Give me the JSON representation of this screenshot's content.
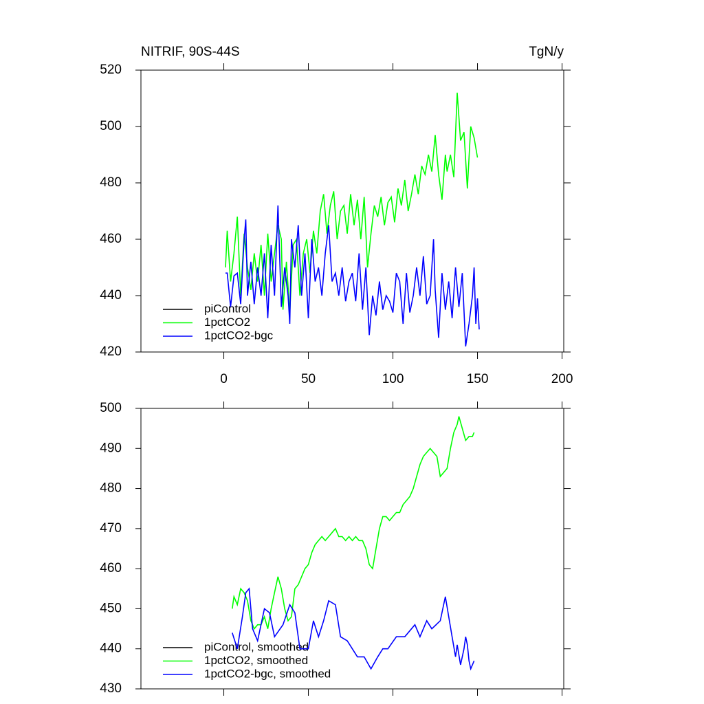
{
  "chart_data": [
    {
      "type": "line",
      "title": "NITRIF, 90S-44S",
      "units": "TgN/y",
      "xlim": [
        -49,
        201
      ],
      "ylim": [
        420,
        520
      ],
      "xticks": [
        0,
        50,
        100,
        150,
        200
      ],
      "yticks": [
        420,
        440,
        460,
        480,
        500,
        520
      ],
      "xtick_labels": true,
      "series": [
        {
          "name": "piControl",
          "color": "#000000",
          "x": [],
          "values": []
        },
        {
          "name": "1pctCO2",
          "color": "#00ff00",
          "x": [
            1,
            2,
            4,
            6,
            8,
            10,
            12,
            14,
            16,
            18,
            20,
            22,
            24,
            26,
            28,
            30,
            32,
            34,
            35,
            37,
            39,
            41,
            43,
            45,
            47,
            49,
            51,
            53,
            55,
            57,
            59,
            61,
            63,
            65,
            67,
            69,
            71,
            73,
            75,
            77,
            79,
            81,
            83,
            85,
            87,
            89,
            91,
            93,
            95,
            97,
            99,
            101,
            103,
            105,
            107,
            109,
            111,
            113,
            115,
            117,
            119,
            121,
            123,
            125,
            127,
            129,
            131,
            132,
            134,
            136,
            138,
            140,
            142,
            144,
            146,
            148,
            150
          ],
          "values": [
            450,
            463,
            445,
            455,
            468,
            440,
            462,
            450,
            442,
            455,
            445,
            458,
            440,
            462,
            445,
            455,
            465,
            460,
            435,
            452,
            434,
            458,
            460,
            440,
            455,
            460,
            448,
            463,
            455,
            470,
            476,
            462,
            472,
            477,
            460,
            470,
            472,
            462,
            476,
            465,
            474,
            460,
            475,
            450,
            462,
            472,
            468,
            475,
            465,
            473,
            475,
            466,
            478,
            472,
            481,
            470,
            476,
            483,
            476,
            486,
            483,
            490,
            484,
            497,
            483,
            474,
            490,
            484,
            490,
            482,
            512,
            495,
            498,
            478,
            500,
            496,
            489
          ]
        },
        {
          "name": "1pctCO2-bgc",
          "color": "#0000ff",
          "x": [
            1,
            2,
            4,
            6,
            8,
            10,
            12,
            13,
            14,
            16,
            18,
            20,
            22,
            24,
            26,
            28,
            30,
            32,
            34,
            36,
            38,
            39,
            40,
            42,
            44,
            46,
            48,
            50,
            52,
            54,
            56,
            58,
            60,
            62,
            64,
            66,
            68,
            70,
            72,
            74,
            76,
            78,
            80,
            82,
            84,
            86,
            88,
            90,
            92,
            94,
            96,
            98,
            100,
            102,
            104,
            106,
            108,
            110,
            112,
            114,
            116,
            118,
            120,
            122,
            124,
            125,
            127,
            129,
            131,
            133,
            135,
            137,
            139,
            141,
            143,
            145,
            147,
            148,
            149,
            150,
            151
          ],
          "values": [
            448,
            448,
            436,
            447,
            448,
            437,
            460,
            467,
            440,
            452,
            437,
            450,
            440,
            455,
            432,
            458,
            440,
            472,
            436,
            450,
            440,
            430,
            460,
            450,
            465,
            440,
            455,
            432,
            460,
            445,
            450,
            440,
            455,
            465,
            445,
            448,
            440,
            450,
            438,
            445,
            448,
            438,
            455,
            435,
            450,
            426,
            440,
            433,
            445,
            435,
            440,
            438,
            434,
            448,
            445,
            430,
            448,
            434,
            440,
            450,
            440,
            454,
            437,
            440,
            460,
            442,
            425,
            448,
            435,
            445,
            432,
            450,
            436,
            448,
            422,
            430,
            440,
            450,
            430,
            439,
            428
          ]
        }
      ]
    },
    {
      "type": "line",
      "xlim": [
        -49,
        201
      ],
      "ylim": [
        430,
        500
      ],
      "xticks": [
        0,
        50,
        100,
        150,
        200
      ],
      "yticks": [
        430,
        440,
        450,
        460,
        470,
        480,
        490,
        500
      ],
      "xtick_labels": false,
      "series": [
        {
          "name": "piControl, smoothed",
          "color": "#000000",
          "x": [],
          "values": []
        },
        {
          "name": "1pctCO2, smoothed",
          "color": "#00ff00",
          "x": [
            5,
            6,
            8,
            10,
            12,
            14,
            16,
            18,
            20,
            22,
            24,
            26,
            28,
            30,
            32,
            34,
            36,
            38,
            40,
            42,
            44,
            46,
            48,
            50,
            52,
            54,
            56,
            58,
            60,
            62,
            64,
            66,
            68,
            70,
            72,
            74,
            76,
            78,
            80,
            82,
            84,
            86,
            88,
            90,
            92,
            94,
            96,
            98,
            100,
            102,
            104,
            106,
            108,
            110,
            112,
            114,
            116,
            118,
            120,
            122,
            124,
            126,
            128,
            130,
            132,
            134,
            136,
            138,
            139,
            141,
            143,
            145,
            147,
            148
          ],
          "values": [
            450,
            453,
            451,
            455,
            454,
            452,
            447,
            445,
            446,
            446,
            448,
            445,
            450,
            454,
            458,
            455,
            450,
            447,
            448,
            455,
            456,
            458,
            460,
            461,
            464,
            466,
            467,
            468,
            467,
            468,
            469,
            470,
            468,
            468,
            467,
            468,
            467,
            468,
            467,
            467,
            465,
            461,
            460,
            465,
            470,
            473,
            473,
            472,
            473,
            474,
            474,
            476,
            477,
            478,
            480,
            483,
            486,
            488,
            489,
            490,
            489,
            488,
            483,
            484,
            485,
            490,
            494,
            496,
            498,
            495,
            492,
            493,
            493,
            494
          ]
        },
        {
          "name": "1pctCO2-bgc, smoothed",
          "color": "#0000ff",
          "x": [
            5,
            8,
            11,
            13,
            15,
            17,
            20,
            24,
            27,
            30,
            35,
            39,
            42,
            45,
            50,
            53,
            56,
            59,
            62,
            66,
            69,
            73,
            79,
            83,
            87,
            91,
            94,
            97,
            102,
            107,
            113,
            116,
            120,
            123,
            128,
            130,
            131,
            133,
            135,
            137,
            138,
            140,
            142,
            143,
            144,
            145,
            146,
            147,
            148
          ],
          "values": [
            444,
            440,
            448,
            454,
            455,
            445,
            442,
            450,
            449,
            443,
            446,
            451,
            449,
            440,
            440,
            447,
            443,
            447,
            452,
            451,
            443,
            442,
            438,
            438,
            435,
            438,
            440,
            440,
            443,
            443,
            446,
            443,
            447,
            445,
            447,
            451,
            453,
            448,
            443,
            438,
            441,
            436,
            440,
            443,
            441,
            437,
            435,
            436,
            437
          ]
        }
      ]
    }
  ]
}
